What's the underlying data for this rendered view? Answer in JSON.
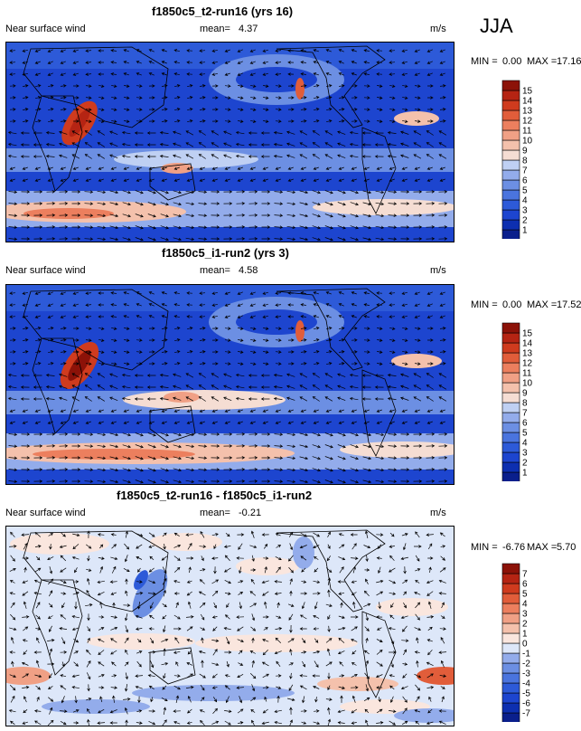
{
  "season": "JJA",
  "chart_data": [
    {
      "type": "heatmap",
      "title": "f1850c5_t2-run16 (yrs 16)",
      "variable": "Near surface wind",
      "mean_label": "mean=",
      "mean": "4.37",
      "units": "m/s",
      "min_label": "MIN =",
      "min": "0.00",
      "max_label": "MAX =",
      "max": "17.16",
      "colorbar": {
        "labels": [
          "1",
          "2",
          "3",
          "4",
          "5",
          "6",
          "7",
          "8",
          "9",
          "10",
          "11",
          "12",
          "13",
          "14",
          "15"
        ]
      }
    },
    {
      "type": "heatmap",
      "title": "f1850c5_i1-run2 (yrs 3)",
      "variable": "Near surface wind",
      "mean_label": "mean=",
      "mean": "4.58",
      "units": "m/s",
      "min_label": "MIN =",
      "min": "0.00",
      "max_label": "MAX =",
      "max": "17.52",
      "colorbar": {
        "labels": [
          "1",
          "2",
          "3",
          "4",
          "5",
          "6",
          "7",
          "8",
          "9",
          "10",
          "11",
          "12",
          "13",
          "14",
          "15"
        ]
      }
    },
    {
      "type": "heatmap",
      "title": "f1850c5_t2-run16 - f1850c5_i1-run2",
      "variable": "Near surface wind",
      "mean_label": "mean=",
      "mean": "-0.21",
      "units": "m/s",
      "min_label": "MIN =",
      "min": "-6.76",
      "max_label": "MAX =",
      "max": "5.70",
      "colorbar": {
        "labels": [
          "-7",
          "-6",
          "-5",
          "-4",
          "-3",
          "-2",
          "-1",
          "0",
          "1",
          "2",
          "3",
          "4",
          "5",
          "6",
          "7"
        ]
      }
    }
  ],
  "colors": {
    "seq": [
      "#0a1f8c",
      "#0d2fb0",
      "#1d45cf",
      "#2d5ad8",
      "#4a74de",
      "#6c8fe3",
      "#93aceb",
      "#bfd0f3",
      "#f5ddd3",
      "#f4c1ac",
      "#f0a085",
      "#ec7f5e",
      "#e15d3a",
      "#cf3b1e",
      "#b52413",
      "#8c1208"
    ],
    "div": [
      "#0a1f8c",
      "#0d2fb0",
      "#1d45cf",
      "#2d5ad8",
      "#4a74de",
      "#6c8fe3",
      "#93aceb",
      "#dde7f9",
      "#fae6de",
      "#f4c1ac",
      "#f0a085",
      "#ec7f5e",
      "#e15d3a",
      "#cf3b1e",
      "#b52413",
      "#8c1208"
    ]
  }
}
